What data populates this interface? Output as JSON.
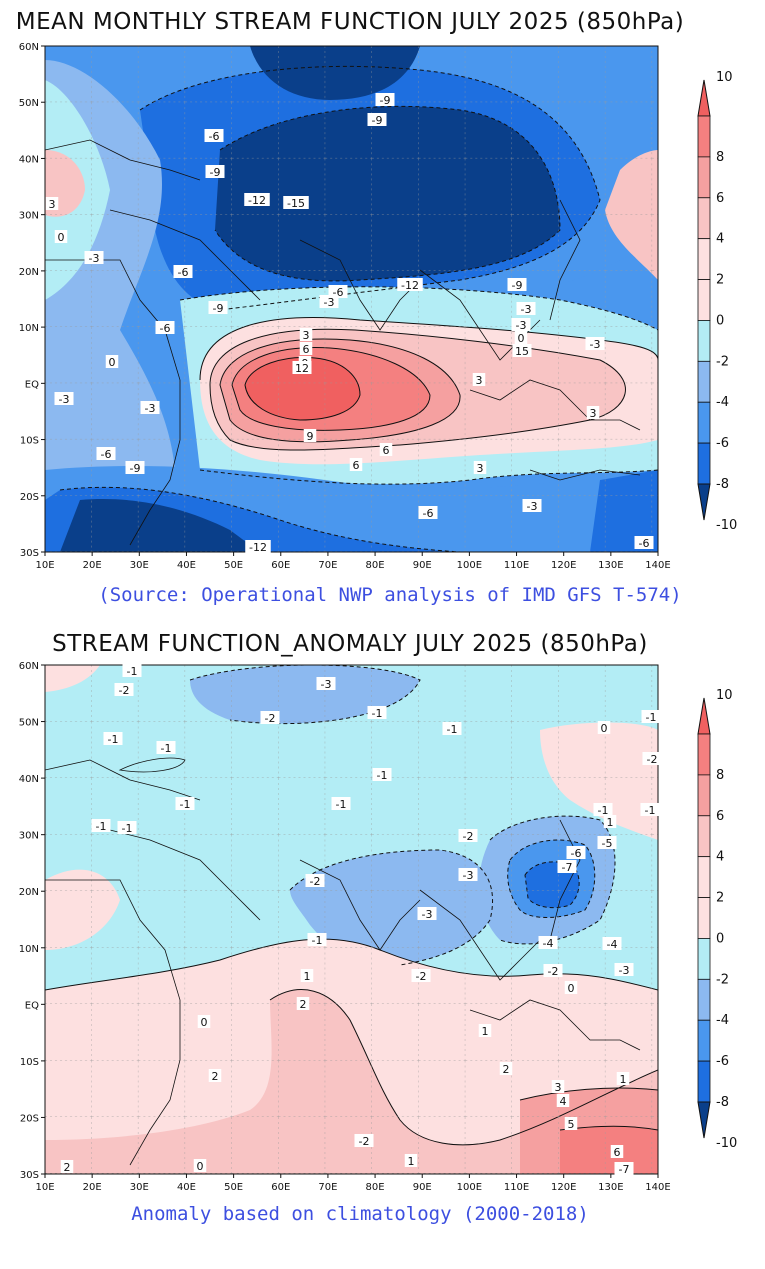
{
  "panels": [
    {
      "title": "MEAN MONTHLY STREAM FUNCTION JULY 2025 (850hPa)",
      "caption": "(Source: Operational NWP analysis of IMD GFS T-574)",
      "xticks": [
        "10E",
        "20E",
        "30E",
        "40E",
        "50E",
        "60E",
        "70E",
        "80E",
        "90E",
        "100E",
        "110E",
        "120E",
        "130E",
        "140E"
      ],
      "yticks": [
        "60N",
        "50N",
        "40N",
        "30N",
        "20N",
        "10N",
        "EQ",
        "10S",
        "20S",
        "30S"
      ],
      "colorbar": [
        "10",
        "8",
        "6",
        "4",
        "2",
        "0",
        "-2",
        "-4",
        "-6",
        "-8",
        "-10"
      ],
      "contour_labels": [
        "-9",
        "-9",
        "-6",
        "-9",
        "-12",
        "-15",
        "-3",
        "-6",
        "-9",
        "-12",
        "-9",
        "-6",
        "-3",
        "-3",
        "-6",
        "-3",
        "0",
        "3",
        "9",
        "6",
        "12",
        "15",
        "3",
        "3",
        "6",
        "9",
        "6",
        "3",
        "0",
        "-3",
        "-3",
        "-6",
        "-9",
        "-6",
        "-12",
        "-3",
        "-6",
        "0",
        "3",
        "-3"
      ]
    },
    {
      "title": "STREAM FUNCTION_ANOMALY JULY 2025 (850hPa)",
      "caption": "Anomaly based on climatology (2000-2018)",
      "xticks": [
        "10E",
        "20E",
        "30E",
        "40E",
        "50E",
        "60E",
        "70E",
        "80E",
        "90E",
        "100E",
        "110E",
        "120E",
        "130E",
        "140E"
      ],
      "yticks": [
        "60N",
        "50N",
        "40N",
        "30N",
        "20N",
        "10N",
        "EQ",
        "10S",
        "20S",
        "30S"
      ],
      "colorbar": [
        "10",
        "8",
        "6",
        "4",
        "2",
        "0",
        "-2",
        "-4",
        "-6",
        "-8",
        "-10"
      ],
      "contour_labels": [
        "-1",
        "-2",
        "-3",
        "-2",
        "-1",
        "-1",
        "-1",
        "0",
        "-1",
        "-1",
        "-1",
        "-1",
        "-1",
        "-2",
        "-2",
        "-3",
        "-3",
        "-2",
        "-4",
        "-6",
        "-7",
        "-5",
        "-4",
        "-3",
        "-2",
        "-1",
        "-1",
        "0",
        "1",
        "2",
        "0",
        "1",
        "2",
        "3",
        "4",
        "5",
        "6",
        "-7",
        "1",
        "2",
        "1",
        "0",
        "-2",
        "2",
        "-2",
        "0",
        "-1",
        "-1",
        "1",
        "-1"
      ]
    }
  ],
  "colors": {
    "cb_10": "#f06060",
    "cb_8": "#f48080",
    "cb_6": "#f5a0a0",
    "cb_4": "#f8c4c4",
    "cb_2": "#fde0e0",
    "cb_m2": "#b3edf5",
    "cb_m4": "#8cb9f0",
    "cb_m6": "#4a97ee",
    "cb_m8": "#1e6fe0",
    "cb_m10": "#0a3f8a",
    "title_text": "#111111",
    "caption_text": "#3d4fe0"
  }
}
